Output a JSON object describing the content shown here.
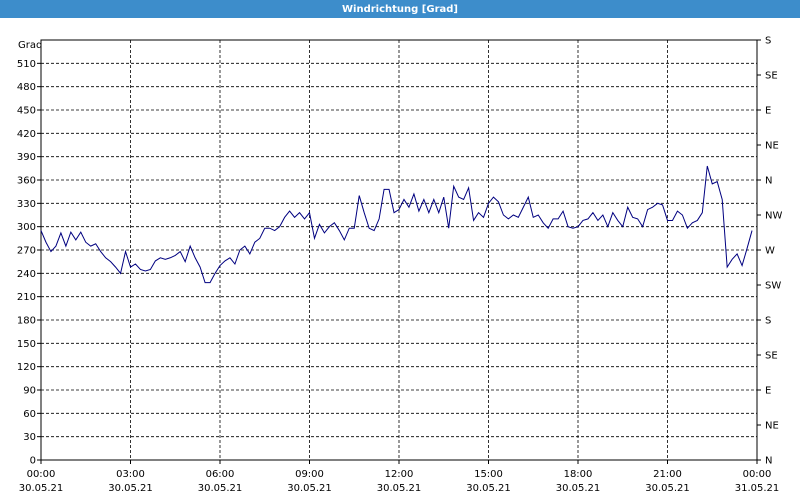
{
  "chart_data": {
    "type": "line",
    "title": "Windrichtung [Grad]",
    "ylabel": "Grad",
    "xlim": [
      0,
      1440
    ],
    "ylim": [
      0,
      540
    ],
    "y2lim": [
      0,
      540
    ],
    "grid": true,
    "xticks": [
      {
        "value": 0,
        "label": "00:00\n30.05.21"
      },
      {
        "value": 180,
        "label": "03:00\n30.05.21"
      },
      {
        "value": 360,
        "label": "06:00\n30.05.21"
      },
      {
        "value": 540,
        "label": "09:00\n30.05.21"
      },
      {
        "value": 720,
        "label": "12:00\n30.05.21"
      },
      {
        "value": 900,
        "label": "15:00\n30.05.21"
      },
      {
        "value": 1080,
        "label": "18:00\n30.05.21"
      },
      {
        "value": 1260,
        "label": "21:00\n30.05.21"
      },
      {
        "value": 1440,
        "label": "00:00\n31.05.21"
      }
    ],
    "yticks": [
      0,
      30,
      60,
      90,
      120,
      150,
      180,
      210,
      240,
      270,
      300,
      330,
      360,
      390,
      420,
      450,
      480,
      510
    ],
    "y2ticks": [
      {
        "value": 540,
        "label": "S"
      },
      {
        "value": 495,
        "label": "SE"
      },
      {
        "value": 450,
        "label": "E"
      },
      {
        "value": 405,
        "label": "NE"
      },
      {
        "value": 360,
        "label": "N"
      },
      {
        "value": 315,
        "label": "NW"
      },
      {
        "value": 270,
        "label": "W"
      },
      {
        "value": 225,
        "label": "SW"
      },
      {
        "value": 180,
        "label": "S"
      },
      {
        "value": 135,
        "label": "SE"
      },
      {
        "value": 90,
        "label": "E"
      },
      {
        "value": 45,
        "label": "NE"
      },
      {
        "value": 0,
        "label": "N"
      }
    ],
    "x": [
      0,
      10,
      20,
      30,
      40,
      50,
      60,
      70,
      80,
      90,
      100,
      110,
      120,
      130,
      140,
      150,
      160,
      170,
      180,
      190,
      200,
      210,
      220,
      230,
      240,
      250,
      260,
      270,
      280,
      290,
      300,
      310,
      320,
      330,
      340,
      350,
      360,
      370,
      380,
      390,
      400,
      410,
      420,
      430,
      440,
      450,
      460,
      470,
      480,
      490,
      500,
      510,
      520,
      530,
      540,
      550,
      560,
      570,
      580,
      590,
      600,
      610,
      620,
      630,
      640,
      650,
      660,
      670,
      680,
      690,
      700,
      710,
      720,
      730,
      740,
      750,
      760,
      770,
      780,
      790,
      800,
      810,
      820,
      830,
      840,
      850,
      860,
      870,
      880,
      890,
      900,
      910,
      920,
      930,
      940,
      950,
      960,
      970,
      980,
      990,
      1000,
      1010,
      1020,
      1030,
      1040,
      1050,
      1060,
      1070,
      1080,
      1090,
      1100,
      1110,
      1120,
      1130,
      1140,
      1150,
      1160,
      1170,
      1180,
      1190,
      1200,
      1210,
      1220,
      1230,
      1240,
      1250,
      1260,
      1270,
      1280,
      1290,
      1300,
      1310,
      1320,
      1330,
      1340,
      1350,
      1360,
      1370,
      1380,
      1390,
      1400,
      1410,
      1420,
      1430
    ],
    "series": [
      {
        "color": "#000080",
        "values": [
          295,
          280,
          268,
          275,
          292,
          275,
          293,
          283,
          293,
          280,
          275,
          278,
          268,
          260,
          255,
          248,
          240,
          268,
          248,
          252,
          245,
          243,
          245,
          256,
          260,
          258,
          260,
          263,
          268,
          255,
          275,
          260,
          248,
          228,
          228,
          240,
          250,
          256,
          260,
          252,
          270,
          275,
          265,
          280,
          285,
          298,
          298,
          295,
          300,
          312,
          320,
          312,
          318,
          310,
          318,
          285,
          303,
          292,
          300,
          305,
          295,
          283,
          298,
          298,
          340,
          318,
          298,
          295,
          310,
          348,
          348,
          318,
          322,
          335,
          325,
          342,
          320,
          335,
          318,
          335,
          318,
          338,
          298,
          352,
          338,
          335,
          350,
          308,
          318,
          312,
          330,
          338,
          332,
          315,
          310,
          315,
          312,
          325,
          338,
          312,
          315,
          305,
          298,
          310,
          310,
          320,
          300,
          298,
          300,
          308,
          310,
          318,
          308,
          315,
          300,
          318,
          308,
          300,
          325,
          312,
          310,
          300,
          322,
          325,
          330,
          328,
          308,
          308,
          320,
          315,
          298,
          305,
          308,
          318,
          378,
          355,
          358,
          335,
          248,
          258,
          265,
          250,
          272,
          295
        ]
      }
    ]
  }
}
